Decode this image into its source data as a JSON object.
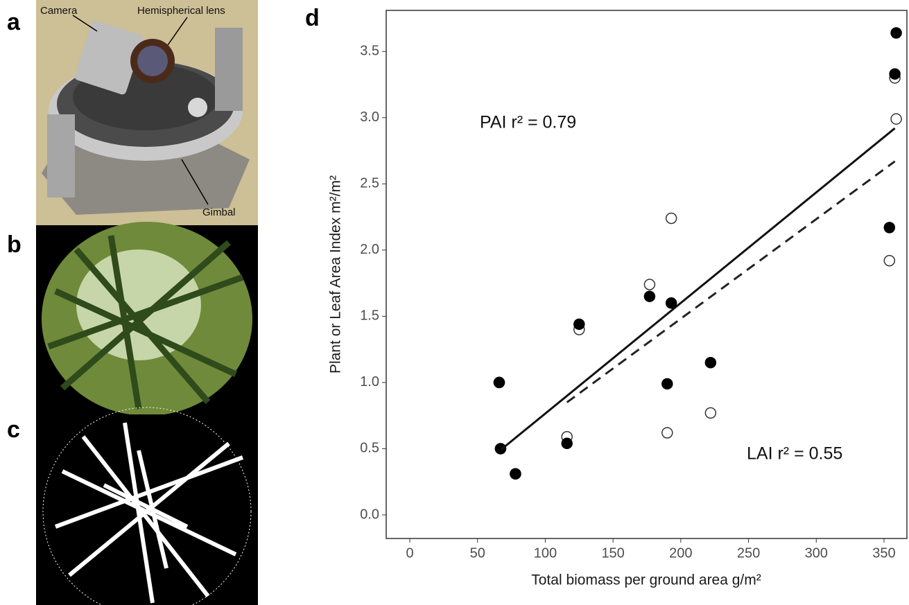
{
  "panels": {
    "labels": [
      "a",
      "b",
      "c",
      "d"
    ],
    "photo_annotations": [
      "Camera",
      "Hemispherical lens",
      "Gimbal"
    ]
  },
  "chart_data": {
    "type": "scatter",
    "x_label": "Total biomass per ground area g/m²",
    "y_label": "Plant or Leaf Area Index m²/m²",
    "annotations": [
      "PAI r² = 0.79",
      "LAI r² = 0.55"
    ],
    "xlim": [
      -17.4,
      366.9
    ],
    "ylim": [
      -0.178,
      3.81
    ],
    "xticks": [
      0,
      50,
      100,
      150,
      200,
      250,
      300,
      350
    ],
    "yticks": [
      {
        "value": 0,
        "label": "0.0"
      },
      0.5,
      {
        "value": 1,
        "label": "1.0"
      },
      1.5,
      {
        "value": 2,
        "label": "2.0"
      },
      2.5,
      {
        "value": 3,
        "label": "3.0"
      },
      3.5
    ],
    "grid": false,
    "series": [
      {
        "marker": "open",
        "color": "#333333",
        "x": [
          66,
          67,
          78,
          116,
          125,
          177,
          190,
          193,
          222,
          354,
          358,
          359
        ],
        "values": [
          1.0,
          0.5,
          0.31,
          0.59,
          1.4,
          1.74,
          0.62,
          2.24,
          0.77,
          1.92,
          3.3,
          2.99
        ]
      },
      {
        "marker": "filled",
        "color": "#000000",
        "x": [
          66,
          67,
          78,
          116,
          125,
          177,
          190,
          193,
          222,
          354,
          358,
          359
        ],
        "values": [
          1.0,
          0.5,
          0.31,
          0.54,
          1.44,
          1.65,
          0.99,
          1.6,
          1.15,
          2.17,
          3.33,
          3.64
        ]
      },
      {
        "marker": "solid-line",
        "color": "#111111",
        "x": [
          67,
          358
        ],
        "values": [
          0.49,
          2.92
        ]
      },
      {
        "marker": "dashed-line",
        "color": "#222222",
        "x": [
          116,
          358
        ],
        "values": [
          0.85,
          2.67
        ]
      }
    ]
  }
}
